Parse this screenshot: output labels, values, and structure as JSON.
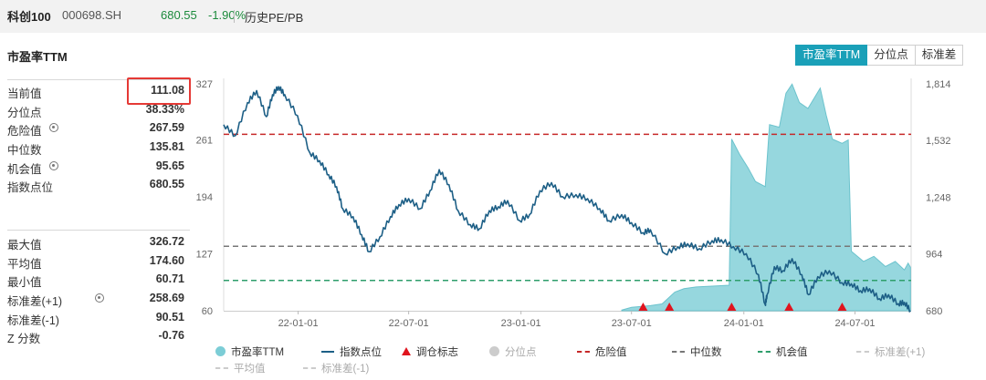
{
  "header": {
    "name": "科创100",
    "code": "000698.SH",
    "price": "680.55",
    "change": "-1.90%",
    "section": "历史PE/PB"
  },
  "panel": {
    "title": "市盈率TTM",
    "stats_top": [
      {
        "label": "当前值",
        "value": "111.08",
        "gear": false
      },
      {
        "label": "分位点",
        "value": "38.33%",
        "gear": false
      },
      {
        "label": "危险值",
        "value": "267.59",
        "gear": true
      },
      {
        "label": "中位数",
        "value": "135.81",
        "gear": false
      },
      {
        "label": "机会值",
        "value": "95.65",
        "gear": true
      },
      {
        "label": "指数点位",
        "value": "680.55",
        "gear": false
      }
    ],
    "stats_bottom": [
      {
        "label": "最大值",
        "value": "326.72",
        "gear": false
      },
      {
        "label": "平均值",
        "value": "174.60",
        "gear": false
      },
      {
        "label": "最小值",
        "value": "60.71",
        "gear": false
      },
      {
        "label": "标准差(+1)",
        "value": "258.69",
        "gear": true
      },
      {
        "label": "标准差(-1)",
        "value": "90.51",
        "gear": false
      },
      {
        "label": "Z 分数",
        "value": "-0.76",
        "gear": false
      }
    ]
  },
  "toggle": {
    "options": [
      "市盈率TTM",
      "分位点",
      "标准差"
    ],
    "active": 0
  },
  "colors": {
    "accent": "#1aa0b8",
    "pe_fill": "#7ccdd6",
    "index_line": "#1d5f86",
    "danger": "#c62828",
    "median": "#777777",
    "opportunity": "#2e9e6b",
    "marker": "#e0141e",
    "down": "#1c8a3c",
    "highlight": "#e53935"
  },
  "legend": [
    {
      "label": "市盈率TTM",
      "kind": "dot",
      "color": "#7ccdd6",
      "muted": false
    },
    {
      "label": "指数点位",
      "kind": "line",
      "color": "#1d5f86",
      "muted": false
    },
    {
      "label": "调仓标志",
      "kind": "triangle",
      "color": "#e0141e",
      "muted": false
    },
    {
      "label": "分位点",
      "kind": "dot",
      "color": "#cccccc",
      "muted": true
    },
    {
      "label": "危险值",
      "kind": "dash",
      "color": "#c62828",
      "muted": false
    },
    {
      "label": "中位数",
      "kind": "dash",
      "color": "#777777",
      "muted": false
    },
    {
      "label": "机会值",
      "kind": "dash",
      "color": "#2e9e6b",
      "muted": false
    },
    {
      "label": "标准差(+1)",
      "kind": "dash",
      "color": "#cccccc",
      "muted": true
    },
    {
      "label": "平均值",
      "kind": "dash",
      "color": "#cccccc",
      "muted": true
    },
    {
      "label": "标准差(-1)",
      "kind": "dash",
      "color": "#cccccc",
      "muted": true
    }
  ],
  "chart_data": {
    "type": "line",
    "x_range": [
      "2021-09-01",
      "2024-10-01"
    ],
    "x_ticks": [
      {
        "date": "2022-01-01",
        "label": "22-01-01"
      },
      {
        "date": "2022-07-01",
        "label": "22-07-01"
      },
      {
        "date": "2023-01-01",
        "label": "23-01-01"
      },
      {
        "date": "2023-07-01",
        "label": "23-07-01"
      },
      {
        "date": "2024-01-01",
        "label": "24-01-01"
      },
      {
        "date": "2024-07-01",
        "label": "24-07-01"
      }
    ],
    "left_axis": {
      "ticks": [
        60,
        127,
        194,
        261,
        327
      ],
      "range": [
        60,
        327
      ]
    },
    "right_axis": {
      "ticks": [
        680,
        964,
        1248,
        1532,
        1814
      ],
      "range": [
        680,
        1814
      ]
    },
    "reference_lines": [
      {
        "name": "危险值",
        "value": 267.59,
        "color": "#c62828"
      },
      {
        "name": "中位数",
        "value": 135.81,
        "color": "#777777"
      },
      {
        "name": "机会值",
        "value": 95.65,
        "color": "#2e9e6b"
      }
    ],
    "series": [
      {
        "name": "市盈率TTM",
        "axis": "left",
        "style": "area",
        "points": [
          [
            "2023-06-15",
            60.7
          ],
          [
            "2023-07-01",
            64
          ],
          [
            "2023-08-01",
            66
          ],
          [
            "2023-08-20",
            68
          ],
          [
            "2023-09-10",
            82
          ],
          [
            "2023-09-25",
            86
          ],
          [
            "2023-10-15",
            88
          ],
          [
            "2023-11-10",
            89
          ],
          [
            "2023-12-08",
            90
          ],
          [
            "2023-12-12",
            262
          ],
          [
            "2023-12-25",
            244
          ],
          [
            "2024-01-08",
            228
          ],
          [
            "2024-01-20",
            212
          ],
          [
            "2024-02-05",
            206
          ],
          [
            "2024-02-12",
            279
          ],
          [
            "2024-02-28",
            276
          ],
          [
            "2024-03-10",
            316
          ],
          [
            "2024-03-20",
            326.7
          ],
          [
            "2024-04-01",
            305
          ],
          [
            "2024-04-15",
            298
          ],
          [
            "2024-04-25",
            310
          ],
          [
            "2024-05-05",
            322
          ],
          [
            "2024-05-15",
            290
          ],
          [
            "2024-05-25",
            262
          ],
          [
            "2024-06-10",
            257
          ],
          [
            "2024-06-20",
            261
          ],
          [
            "2024-06-25",
            130
          ],
          [
            "2024-07-15",
            118
          ],
          [
            "2024-08-01",
            124
          ],
          [
            "2024-08-20",
            112
          ],
          [
            "2024-09-05",
            118
          ],
          [
            "2024-09-20",
            108
          ],
          [
            "2024-09-26",
            116
          ],
          [
            "2024-09-30",
            111.08
          ]
        ]
      },
      {
        "name": "指数点位",
        "axis": "right",
        "style": "line",
        "points": [
          [
            "2021-09-01",
            1610
          ],
          [
            "2021-09-20",
            1555
          ],
          [
            "2021-10-10",
            1720
          ],
          [
            "2021-10-25",
            1780
          ],
          [
            "2021-11-10",
            1650
          ],
          [
            "2021-11-20",
            1760
          ],
          [
            "2021-11-30",
            1800
          ],
          [
            "2021-12-10",
            1760
          ],
          [
            "2021-12-31",
            1655
          ],
          [
            "2022-01-20",
            1470
          ],
          [
            "2022-02-05",
            1430
          ],
          [
            "2022-02-20",
            1360
          ],
          [
            "2022-03-05",
            1300
          ],
          [
            "2022-03-15",
            1190
          ],
          [
            "2022-04-01",
            1150
          ],
          [
            "2022-04-15",
            1060
          ],
          [
            "2022-04-27",
            975
          ],
          [
            "2022-05-15",
            1050
          ],
          [
            "2022-06-01",
            1150
          ],
          [
            "2022-06-15",
            1210
          ],
          [
            "2022-07-01",
            1240
          ],
          [
            "2022-07-20",
            1190
          ],
          [
            "2022-08-05",
            1280
          ],
          [
            "2022-08-20",
            1385
          ],
          [
            "2022-09-05",
            1310
          ],
          [
            "2022-09-20",
            1180
          ],
          [
            "2022-10-10",
            1110
          ],
          [
            "2022-10-25",
            1090
          ],
          [
            "2022-11-10",
            1180
          ],
          [
            "2022-11-25",
            1200
          ],
          [
            "2022-12-10",
            1230
          ],
          [
            "2022-12-30",
            1130
          ],
          [
            "2023-01-15",
            1160
          ],
          [
            "2023-02-01",
            1280
          ],
          [
            "2023-02-20",
            1320
          ],
          [
            "2023-03-10",
            1250
          ],
          [
            "2023-04-01",
            1260
          ],
          [
            "2023-04-20",
            1240
          ],
          [
            "2023-05-10",
            1190
          ],
          [
            "2023-05-25",
            1130
          ],
          [
            "2023-06-15",
            1160
          ],
          [
            "2023-07-01",
            1120
          ],
          [
            "2023-07-20",
            1070
          ],
          [
            "2023-08-01",
            1085
          ],
          [
            "2023-08-25",
            965
          ],
          [
            "2023-09-15",
            1000
          ],
          [
            "2023-10-01",
            1015
          ],
          [
            "2023-10-20",
            990
          ],
          [
            "2023-11-10",
            1030
          ],
          [
            "2023-11-25",
            1035
          ],
          [
            "2023-12-15",
            1000
          ],
          [
            "2024-01-05",
            965
          ],
          [
            "2024-01-25",
            860
          ],
          [
            "2024-02-05",
            710
          ],
          [
            "2024-02-08",
            760
          ],
          [
            "2024-02-20",
            900
          ],
          [
            "2024-03-05",
            880
          ],
          [
            "2024-03-20",
            940
          ],
          [
            "2024-04-05",
            860
          ],
          [
            "2024-04-16",
            760
          ],
          [
            "2024-05-01",
            850
          ],
          [
            "2024-05-20",
            880
          ],
          [
            "2024-06-10",
            820
          ],
          [
            "2024-06-25",
            815
          ],
          [
            "2024-07-10",
            780
          ],
          [
            "2024-07-25",
            790
          ],
          [
            "2024-08-10",
            740
          ],
          [
            "2024-08-25",
            760
          ],
          [
            "2024-09-10",
            715
          ],
          [
            "2024-09-20",
            722
          ],
          [
            "2024-09-30",
            680.55
          ]
        ]
      }
    ],
    "markers": [
      "2023-07-20",
      "2023-09-01",
      "2023-12-12",
      "2024-03-15",
      "2024-06-10"
    ]
  }
}
